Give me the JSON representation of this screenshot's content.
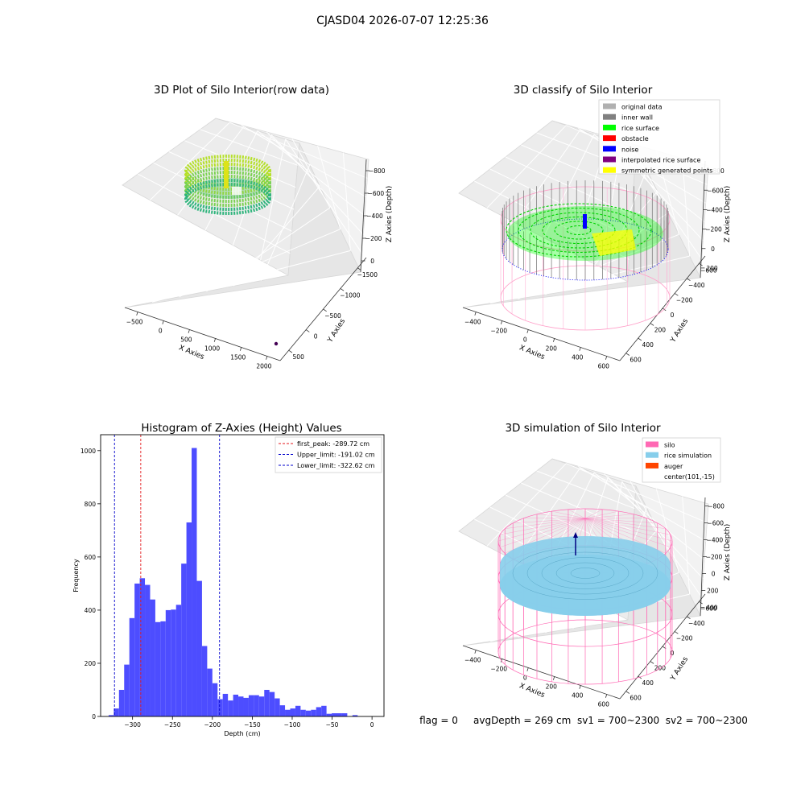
{
  "figure": {
    "suptitle": "CJASD04 2026-07-07 12:25:36",
    "footer": "flag = 0     avgDepth = 269 cm  sv1 = 700~2300  sv2 = 700~2300"
  },
  "colors": {
    "histogram": "#4d4dff",
    "first_peak": "#e41a1c",
    "limits": "#0000cc",
    "original_data": "#b0b0b0",
    "inner_wall": "#808080",
    "rice_surface": "#00ff00",
    "obstacle": "#ff0000",
    "noise": "#0000ff",
    "interpolated_rice_surface": "#800080",
    "symmetric_generated_points": "#ffff00",
    "silo": "#ff69b4",
    "rice_simulation": "#87ceeb",
    "auger": "#ff4500"
  },
  "chart_data": [
    {
      "type": "scatter",
      "title": "3D Plot of Silo Interior(row data)",
      "xlabel": "X Axies",
      "ylabel": "Y Axies",
      "zlabel": "Z Axies (Depth)",
      "x_ticks": [
        -500,
        0,
        500,
        1000,
        1500,
        2000
      ],
      "y_ticks": [
        500,
        0,
        -500,
        -1000,
        -1500
      ],
      "z_ticks": [
        0,
        -200,
        -400,
        -600,
        -800
      ],
      "xlim": [
        -600,
        2100
      ],
      "ylim": [
        -1550,
        700
      ],
      "zlim": [
        -950,
        50
      ]
    },
    {
      "type": "scatter",
      "title": "3D classify of Silo Interior",
      "zlabel": "Z Axies (Depth)",
      "xlabel": "X Axies",
      "ylabel": "Y Axies",
      "x_ticks": [
        -400,
        -200,
        0,
        200,
        400,
        600
      ],
      "y_ticks": [
        600,
        400,
        200,
        0,
        -200,
        -400,
        -600
      ],
      "z_ticks": [
        200,
        0,
        -200,
        -400,
        -600,
        -800
      ],
      "legend": [
        "original data",
        "inner wall",
        "rice surface",
        "obstacle",
        "noise",
        "interpolated rice surface",
        "symmetric generated points"
      ],
      "legend_loc": "top-right"
    },
    {
      "type": "bar",
      "title": "Histogram of Z-Axies (Height) Values",
      "xlabel": "Depth (cm)",
      "ylabel": "Frequency",
      "x_ticks": [
        -300,
        -250,
        -200,
        -150,
        -100,
        -50,
        0
      ],
      "y_ticks": [
        0,
        200,
        400,
        600,
        800,
        1000
      ],
      "xlim": [
        -340,
        15
      ],
      "ylim": [
        0,
        1060
      ],
      "bin_start": -330,
      "bin_width": 6.5,
      "values": [
        5,
        30,
        100,
        195,
        370,
        500,
        520,
        495,
        440,
        355,
        358,
        400,
        402,
        420,
        575,
        730,
        1010,
        510,
        265,
        180,
        125,
        65,
        85,
        60,
        82,
        75,
        70,
        80,
        80,
        75,
        100,
        92,
        68,
        42,
        25,
        30,
        40,
        25,
        22,
        25,
        35,
        40,
        10,
        12,
        12,
        12,
        0,
        5
      ],
      "lines": [
        {
          "label": "first_peak: -289.72 cm",
          "value": -289.72,
          "color": "#e41a1c"
        },
        {
          "label": "Upper_limit: -191.02 cm",
          "value": -191.02,
          "color": "#0000cc"
        },
        {
          "label": "Lower_limit: -322.62 cm",
          "value": -322.62,
          "color": "#0000cc"
        }
      ],
      "legend_loc": "top-right"
    },
    {
      "type": "scatter",
      "title": "3D simulation of Silo Interior",
      "zlabel": "Z Axies (Depth)",
      "xlabel": "X Axies",
      "ylabel": "Y Axies",
      "x_ticks": [
        -400,
        -200,
        0,
        200,
        400,
        600
      ],
      "y_ticks": [
        600,
        400,
        200,
        0,
        -200,
        -400,
        -600
      ],
      "z_ticks": [
        400,
        200,
        0,
        -200,
        -400,
        -600,
        -800
      ],
      "legend": [
        "silo",
        "rice simulation",
        "auger",
        "center(101,-15)"
      ],
      "legend_loc": "top-right"
    }
  ]
}
